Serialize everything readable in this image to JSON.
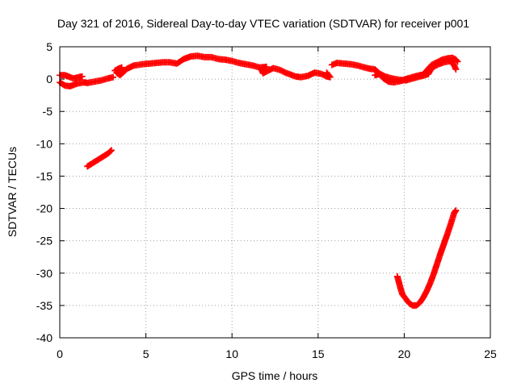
{
  "chart_data": {
    "type": "scatter",
    "title": "Day 321 of 2016, Sidereal Day-to-day VTEC variation (SDTVAR) for receiver p001",
    "xlabel": "GPS time / hours",
    "ylabel": "SDTVAR / TECUs",
    "xlim": [
      0,
      25
    ],
    "ylim": [
      -40,
      5
    ],
    "xticks": [
      0,
      5,
      10,
      15,
      20,
      25
    ],
    "yticks": [
      5,
      0,
      -5,
      -10,
      -15,
      -20,
      -25,
      -30,
      -35,
      -40
    ],
    "grid": true,
    "marker": "plus",
    "color": "#ff0000",
    "series": [
      {
        "name": "SDTVAR",
        "segments": [
          [
            [
              0.0,
              -0.5
            ],
            [
              0.3,
              -1.0
            ],
            [
              0.6,
              -1.1
            ],
            [
              1.0,
              -0.7
            ],
            [
              1.4,
              -0.5
            ],
            [
              1.6,
              -0.6
            ],
            [
              2.0,
              -0.4
            ],
            [
              2.4,
              -0.2
            ],
            [
              2.8,
              0.1
            ],
            [
              3.1,
              0.3
            ]
          ],
          [
            [
              0.0,
              0.6
            ],
            [
              0.3,
              0.6
            ],
            [
              0.5,
              0.4
            ],
            [
              0.8,
              0.1
            ],
            [
              1.1,
              0.3
            ],
            [
              1.3,
              0.4
            ]
          ],
          [
            [
              3.2,
              1.3
            ],
            [
              3.4,
              1.6
            ],
            [
              3.6,
              1.8
            ],
            [
              3.3,
              1.0
            ],
            [
              3.5,
              0.6
            ],
            [
              3.9,
              1.6
            ],
            [
              4.3,
              2.1
            ],
            [
              4.8,
              2.3
            ],
            [
              5.2,
              2.4
            ],
            [
              5.6,
              2.5
            ],
            [
              6.0,
              2.6
            ],
            [
              6.4,
              2.6
            ],
            [
              6.8,
              2.4
            ],
            [
              7.2,
              3.1
            ],
            [
              7.6,
              3.5
            ],
            [
              8.0,
              3.6
            ],
            [
              8.4,
              3.4
            ],
            [
              8.8,
              3.4
            ],
            [
              9.2,
              3.1
            ],
            [
              9.6,
              3.0
            ],
            [
              10.0,
              2.8
            ],
            [
              10.4,
              2.5
            ],
            [
              10.8,
              2.3
            ],
            [
              11.2,
              2.1
            ],
            [
              11.6,
              1.8
            ],
            [
              12.0,
              1.9
            ],
            [
              11.7,
              1.6
            ],
            [
              11.8,
              0.9
            ],
            [
              12.1,
              1.3
            ],
            [
              12.4,
              1.7
            ],
            [
              12.8,
              1.4
            ],
            [
              13.1,
              1.0
            ],
            [
              13.4,
              0.7
            ],
            [
              13.7,
              0.4
            ],
            [
              14.0,
              0.3
            ],
            [
              14.4,
              0.5
            ],
            [
              14.8,
              1.0
            ],
            [
              15.2,
              0.8
            ],
            [
              15.5,
              0.4
            ],
            [
              15.7,
              0.3
            ],
            [
              15.5,
              1.0
            ]
          ],
          [
            [
              1.6,
              -13.5
            ],
            [
              1.9,
              -13.0
            ],
            [
              2.2,
              -12.5
            ],
            [
              2.5,
              -12.0
            ],
            [
              2.8,
              -11.5
            ],
            [
              3.0,
              -11.0
            ]
          ],
          [
            [
              15.8,
              2.2
            ],
            [
              16.1,
              2.5
            ],
            [
              16.5,
              2.4
            ],
            [
              16.9,
              2.3
            ],
            [
              17.3,
              2.1
            ],
            [
              17.7,
              1.8
            ],
            [
              18.0,
              1.6
            ],
            [
              18.3,
              1.5
            ],
            [
              18.5,
              1.0
            ],
            [
              18.8,
              0.1
            ],
            [
              19.1,
              -0.4
            ],
            [
              19.4,
              -0.5
            ],
            [
              19.8,
              -0.3
            ],
            [
              20.2,
              0.1
            ],
            [
              20.6,
              0.4
            ],
            [
              20.9,
              0.6
            ],
            [
              21.1,
              0.7
            ],
            [
              21.3,
              1.3
            ],
            [
              21.6,
              2.2
            ],
            [
              21.9,
              2.6
            ],
            [
              22.2,
              3.0
            ],
            [
              22.5,
              3.2
            ],
            [
              22.8,
              3.3
            ],
            [
              23.0,
              3.0
            ],
            [
              23.1,
              2.7
            ]
          ],
          [
            [
              18.3,
              0.6
            ],
            [
              18.6,
              0.8
            ],
            [
              18.9,
              0.4
            ],
            [
              19.3,
              0.1
            ],
            [
              19.7,
              -0.1
            ],
            [
              20.1,
              -0.2
            ],
            [
              20.5,
              0.1
            ],
            [
              20.9,
              0.4
            ],
            [
              21.2,
              0.6
            ],
            [
              21.4,
              0.8
            ],
            [
              21.5,
              1.3
            ],
            [
              21.7,
              1.9
            ],
            [
              22.0,
              2.3
            ],
            [
              22.3,
              2.6
            ],
            [
              22.7,
              2.8
            ],
            [
              22.9,
              2.1
            ],
            [
              23.0,
              1.5
            ]
          ],
          [
            [
              19.6,
              -30.5
            ],
            [
              19.7,
              -31.5
            ],
            [
              19.8,
              -32.5
            ],
            [
              19.9,
              -33.3
            ],
            [
              20.1,
              -34.0
            ],
            [
              20.3,
              -34.7
            ],
            [
              20.5,
              -35.0
            ],
            [
              20.7,
              -35.0
            ],
            [
              20.9,
              -34.6
            ],
            [
              21.1,
              -33.8
            ],
            [
              21.3,
              -32.8
            ],
            [
              21.5,
              -31.6
            ],
            [
              21.7,
              -30.2
            ],
            [
              21.9,
              -28.6
            ],
            [
              22.1,
              -27.0
            ],
            [
              22.3,
              -25.5
            ],
            [
              22.5,
              -24.0
            ],
            [
              22.7,
              -22.4
            ],
            [
              22.9,
              -20.7
            ],
            [
              23.0,
              -20.3
            ]
          ]
        ]
      }
    ]
  }
}
